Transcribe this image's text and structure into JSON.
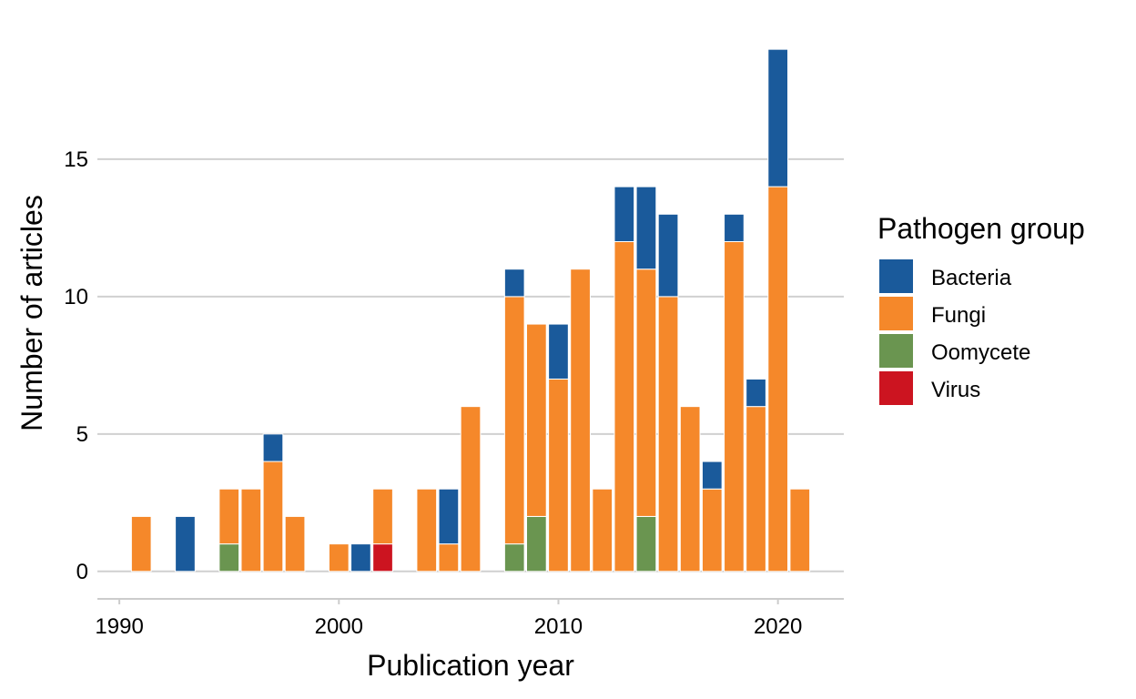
{
  "chart_data": {
    "type": "bar",
    "stacked": true,
    "title": "",
    "xlabel": "Publication year",
    "ylabel": "Number of articles",
    "xlim": [
      1989.0,
      2023.0
    ],
    "ylim": [
      -1.0,
      19.8
    ],
    "x_ticks": [
      1990,
      2000,
      2010,
      2020
    ],
    "y_ticks": [
      0,
      5,
      10,
      15
    ],
    "grid": "horizontal-major",
    "legend": {
      "title": "Pathogen group",
      "position": "right"
    },
    "series": [
      {
        "name": "Bacteria",
        "color": "#1a5a9b",
        "points": [
          [
            1993,
            2
          ],
          [
            1997,
            1
          ],
          [
            2001,
            1
          ],
          [
            2005,
            2
          ],
          [
            2008,
            1
          ],
          [
            2010,
            2
          ],
          [
            2013,
            2
          ],
          [
            2014,
            3
          ],
          [
            2015,
            3
          ],
          [
            2017,
            1
          ],
          [
            2018,
            1
          ],
          [
            2019,
            1
          ],
          [
            2020,
            5
          ]
        ]
      },
      {
        "name": "Fungi",
        "color": "#f5882a",
        "points": [
          [
            1991,
            2
          ],
          [
            1995,
            2
          ],
          [
            1996,
            3
          ],
          [
            1997,
            4
          ],
          [
            1998,
            2
          ],
          [
            2000,
            1
          ],
          [
            2002,
            2
          ],
          [
            2004,
            3
          ],
          [
            2005,
            1
          ],
          [
            2006,
            6
          ],
          [
            2008,
            9
          ],
          [
            2009,
            7
          ],
          [
            2010,
            7
          ],
          [
            2011,
            11
          ],
          [
            2012,
            3
          ],
          [
            2013,
            12
          ],
          [
            2014,
            9
          ],
          [
            2015,
            10
          ],
          [
            2016,
            6
          ],
          [
            2017,
            3
          ],
          [
            2018,
            12
          ],
          [
            2019,
            6
          ],
          [
            2020,
            14
          ],
          [
            2021,
            3
          ]
        ]
      },
      {
        "name": "Oomycete",
        "color": "#6a9550",
        "points": [
          [
            1995,
            1
          ],
          [
            2008,
            1
          ],
          [
            2009,
            2
          ],
          [
            2014,
            2
          ]
        ]
      },
      {
        "name": "Virus",
        "color": "#cc1420",
        "points": [
          [
            2002,
            1
          ]
        ]
      }
    ],
    "stack_order_bottom_to_top": [
      "Virus",
      "Oomycete",
      "Fungi",
      "Bacteria"
    ]
  }
}
